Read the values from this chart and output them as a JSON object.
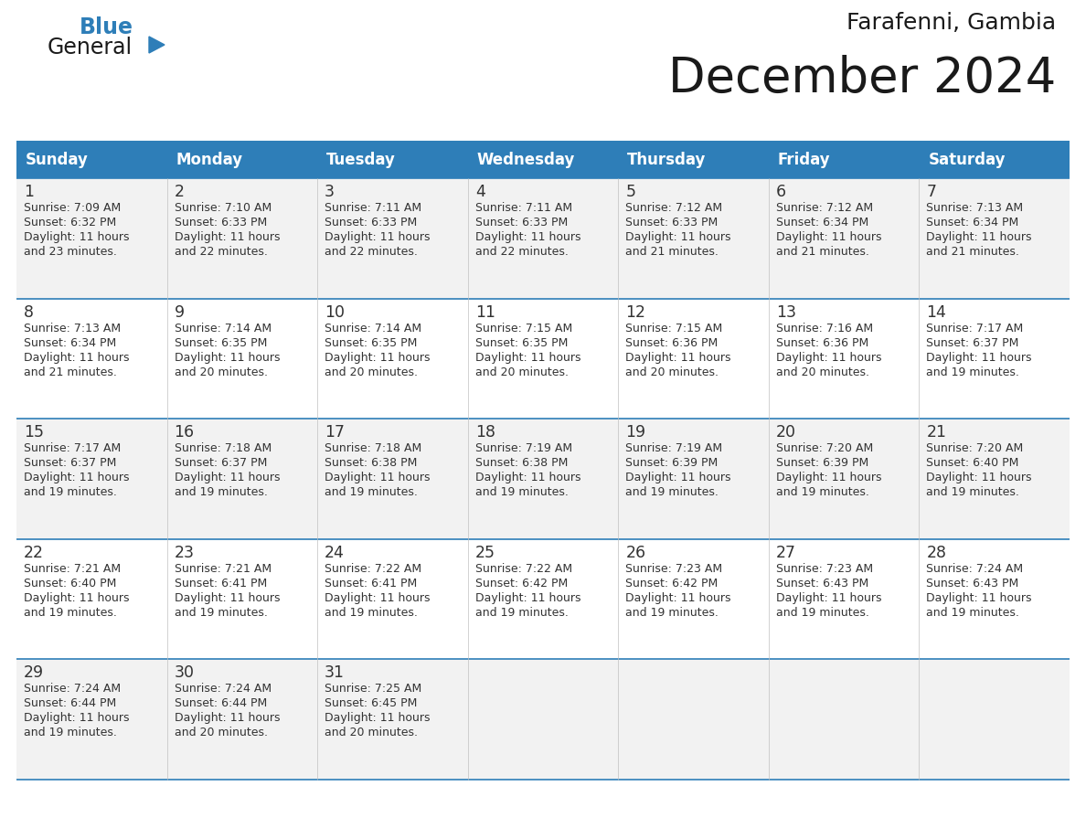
{
  "title": "December 2024",
  "subtitle": "Farafenni, Gambia",
  "header_color": "#2E7EB8",
  "header_text_color": "#FFFFFF",
  "days_of_week": [
    "Sunday",
    "Monday",
    "Tuesday",
    "Wednesday",
    "Thursday",
    "Friday",
    "Saturday"
  ],
  "row_bg_colors": [
    "#F2F2F2",
    "#FFFFFF"
  ],
  "border_color": "#2E7EB8",
  "text_color": "#333333",
  "calendar_data": [
    [
      {
        "day": 1,
        "sunrise": "7:09 AM",
        "sunset": "6:32 PM",
        "daylight_hours": 11,
        "daylight_minutes": 23
      },
      {
        "day": 2,
        "sunrise": "7:10 AM",
        "sunset": "6:33 PM",
        "daylight_hours": 11,
        "daylight_minutes": 22
      },
      {
        "day": 3,
        "sunrise": "7:11 AM",
        "sunset": "6:33 PM",
        "daylight_hours": 11,
        "daylight_minutes": 22
      },
      {
        "day": 4,
        "sunrise": "7:11 AM",
        "sunset": "6:33 PM",
        "daylight_hours": 11,
        "daylight_minutes": 22
      },
      {
        "day": 5,
        "sunrise": "7:12 AM",
        "sunset": "6:33 PM",
        "daylight_hours": 11,
        "daylight_minutes": 21
      },
      {
        "day": 6,
        "sunrise": "7:12 AM",
        "sunset": "6:34 PM",
        "daylight_hours": 11,
        "daylight_minutes": 21
      },
      {
        "day": 7,
        "sunrise": "7:13 AM",
        "sunset": "6:34 PM",
        "daylight_hours": 11,
        "daylight_minutes": 21
      }
    ],
    [
      {
        "day": 8,
        "sunrise": "7:13 AM",
        "sunset": "6:34 PM",
        "daylight_hours": 11,
        "daylight_minutes": 21
      },
      {
        "day": 9,
        "sunrise": "7:14 AM",
        "sunset": "6:35 PM",
        "daylight_hours": 11,
        "daylight_minutes": 20
      },
      {
        "day": 10,
        "sunrise": "7:14 AM",
        "sunset": "6:35 PM",
        "daylight_hours": 11,
        "daylight_minutes": 20
      },
      {
        "day": 11,
        "sunrise": "7:15 AM",
        "sunset": "6:35 PM",
        "daylight_hours": 11,
        "daylight_minutes": 20
      },
      {
        "day": 12,
        "sunrise": "7:15 AM",
        "sunset": "6:36 PM",
        "daylight_hours": 11,
        "daylight_minutes": 20
      },
      {
        "day": 13,
        "sunrise": "7:16 AM",
        "sunset": "6:36 PM",
        "daylight_hours": 11,
        "daylight_minutes": 20
      },
      {
        "day": 14,
        "sunrise": "7:17 AM",
        "sunset": "6:37 PM",
        "daylight_hours": 11,
        "daylight_minutes": 19
      }
    ],
    [
      {
        "day": 15,
        "sunrise": "7:17 AM",
        "sunset": "6:37 PM",
        "daylight_hours": 11,
        "daylight_minutes": 19
      },
      {
        "day": 16,
        "sunrise": "7:18 AM",
        "sunset": "6:37 PM",
        "daylight_hours": 11,
        "daylight_minutes": 19
      },
      {
        "day": 17,
        "sunrise": "7:18 AM",
        "sunset": "6:38 PM",
        "daylight_hours": 11,
        "daylight_minutes": 19
      },
      {
        "day": 18,
        "sunrise": "7:19 AM",
        "sunset": "6:38 PM",
        "daylight_hours": 11,
        "daylight_minutes": 19
      },
      {
        "day": 19,
        "sunrise": "7:19 AM",
        "sunset": "6:39 PM",
        "daylight_hours": 11,
        "daylight_minutes": 19
      },
      {
        "day": 20,
        "sunrise": "7:20 AM",
        "sunset": "6:39 PM",
        "daylight_hours": 11,
        "daylight_minutes": 19
      },
      {
        "day": 21,
        "sunrise": "7:20 AM",
        "sunset": "6:40 PM",
        "daylight_hours": 11,
        "daylight_minutes": 19
      }
    ],
    [
      {
        "day": 22,
        "sunrise": "7:21 AM",
        "sunset": "6:40 PM",
        "daylight_hours": 11,
        "daylight_minutes": 19
      },
      {
        "day": 23,
        "sunrise": "7:21 AM",
        "sunset": "6:41 PM",
        "daylight_hours": 11,
        "daylight_minutes": 19
      },
      {
        "day": 24,
        "sunrise": "7:22 AM",
        "sunset": "6:41 PM",
        "daylight_hours": 11,
        "daylight_minutes": 19
      },
      {
        "day": 25,
        "sunrise": "7:22 AM",
        "sunset": "6:42 PM",
        "daylight_hours": 11,
        "daylight_minutes": 19
      },
      {
        "day": 26,
        "sunrise": "7:23 AM",
        "sunset": "6:42 PM",
        "daylight_hours": 11,
        "daylight_minutes": 19
      },
      {
        "day": 27,
        "sunrise": "7:23 AM",
        "sunset": "6:43 PM",
        "daylight_hours": 11,
        "daylight_minutes": 19
      },
      {
        "day": 28,
        "sunrise": "7:24 AM",
        "sunset": "6:43 PM",
        "daylight_hours": 11,
        "daylight_minutes": 19
      }
    ],
    [
      {
        "day": 29,
        "sunrise": "7:24 AM",
        "sunset": "6:44 PM",
        "daylight_hours": 11,
        "daylight_minutes": 19
      },
      {
        "day": 30,
        "sunrise": "7:24 AM",
        "sunset": "6:44 PM",
        "daylight_hours": 11,
        "daylight_minutes": 20
      },
      {
        "day": 31,
        "sunrise": "7:25 AM",
        "sunset": "6:45 PM",
        "daylight_hours": 11,
        "daylight_minutes": 20
      },
      null,
      null,
      null,
      null
    ]
  ],
  "logo_general_color": "#1a1a1a",
  "logo_blue_color": "#2E7EB8",
  "logo_triangle_color": "#2E7EB8",
  "fig_width": 11.88,
  "fig_height": 9.18,
  "dpi": 100
}
